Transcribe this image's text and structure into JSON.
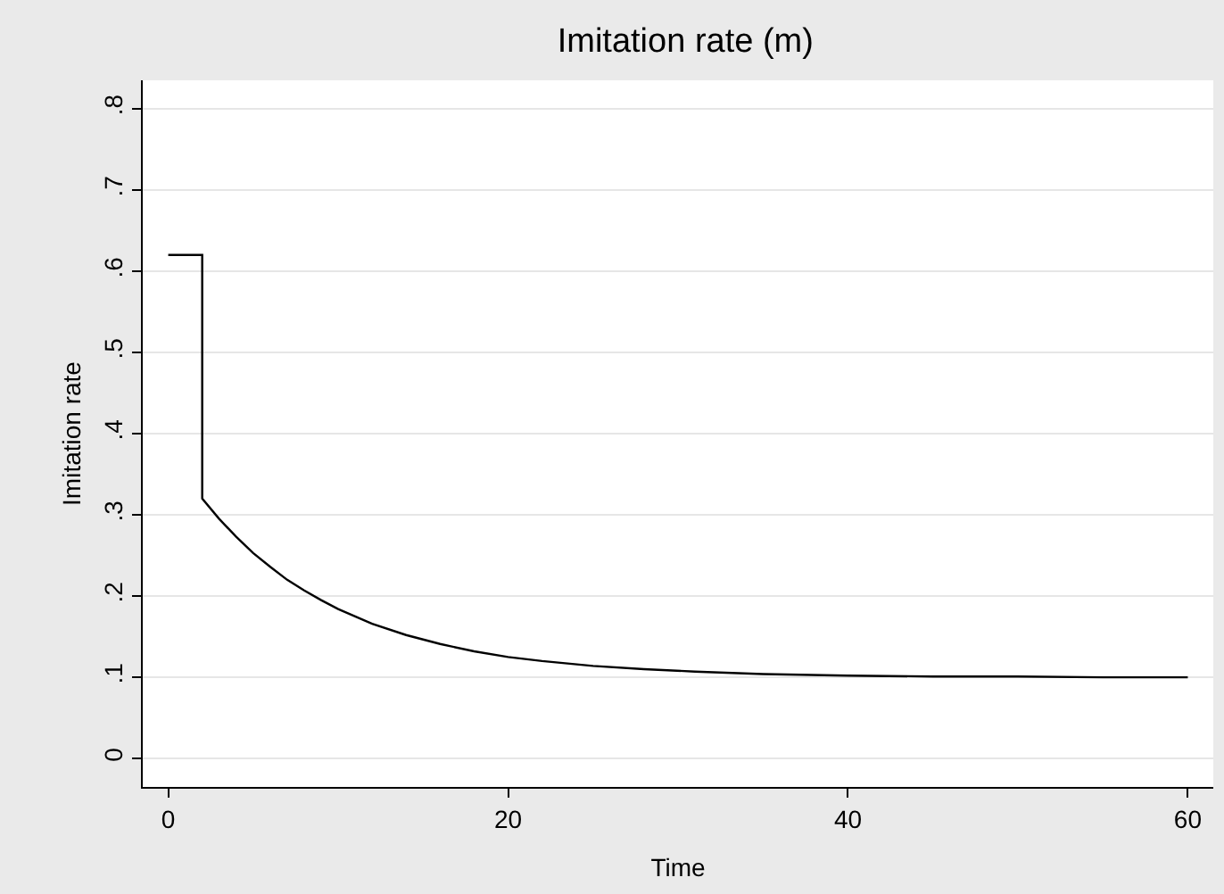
{
  "chart_data": {
    "type": "line",
    "title": "Imitation rate (m)",
    "xlabel": "Time",
    "ylabel": "Imitation rate",
    "series": [
      {
        "color": "#000000",
        "x": [
          0,
          2,
          2,
          3,
          4,
          5,
          6,
          7,
          8,
          9,
          10,
          12,
          14,
          16,
          18,
          20,
          22,
          25,
          28,
          31,
          35,
          40,
          45,
          50,
          55,
          60
        ],
        "values": [
          0.62,
          0.62,
          0.32,
          0.295,
          0.273,
          0.253,
          0.236,
          0.22,
          0.207,
          0.195,
          0.184,
          0.166,
          0.152,
          0.141,
          0.132,
          0.125,
          0.12,
          0.114,
          0.11,
          0.107,
          0.104,
          0.102,
          0.101,
          0.101,
          0.1,
          0.1
        ]
      }
    ],
    "xlim": [
      -1.5,
      61.5
    ],
    "xticks": [
      0,
      20,
      40,
      60
    ],
    "ylim": [
      -0.035,
      0.835
    ],
    "yticks": [
      0,
      {
        "value": 0.1,
        "label": ".1"
      },
      {
        "value": 0.2,
        "label": ".2"
      },
      {
        "value": 0.3,
        "label": ".3"
      },
      {
        "value": 0.4,
        "label": ".4"
      },
      {
        "value": 0.5,
        "label": ".5"
      },
      {
        "value": 0.6,
        "label": ".6"
      },
      {
        "value": 0.7,
        "label": ".7"
      },
      {
        "value": 0.8,
        "label": ".8"
      }
    ],
    "grid": "y",
    "marker": "none",
    "line_style": "solid"
  }
}
